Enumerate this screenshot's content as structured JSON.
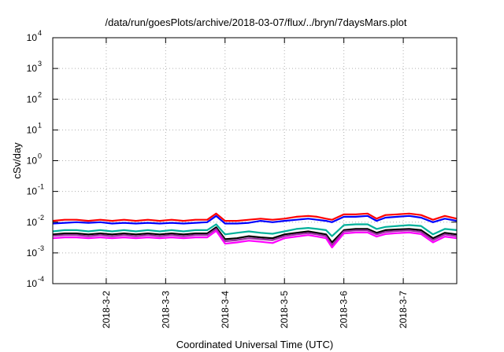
{
  "chart_data": {
    "type": "line",
    "title": "/data/run/goesPlots/archive/2018-03-07/flux/../bryn/7daysMars.plot",
    "xlabel": "Coordinated Universal Time (UTC)",
    "ylabel": "cSv/day",
    "y_scale": "log",
    "ylim": [
      0.0001,
      10000
    ],
    "xlim": [
      1.1,
      7.9
    ],
    "grid": true,
    "legend": "none",
    "y_ticks": [
      {
        "value": 0.0001,
        "base": "10",
        "exp": "-4"
      },
      {
        "value": 0.001,
        "base": "10",
        "exp": "-3"
      },
      {
        "value": 0.01,
        "base": "10",
        "exp": "-2"
      },
      {
        "value": 0.1,
        "base": "10",
        "exp": "-1"
      },
      {
        "value": 1,
        "base": "10",
        "exp": "0"
      },
      {
        "value": 10,
        "base": "10",
        "exp": "1"
      },
      {
        "value": 100,
        "base": "10",
        "exp": "2"
      },
      {
        "value": 1000,
        "base": "10",
        "exp": "3"
      },
      {
        "value": 10000,
        "base": "10",
        "exp": "4"
      }
    ],
    "x_ticks": [
      {
        "value": 2,
        "label": "2018-3-2"
      },
      {
        "value": 3,
        "label": "2018-3-3"
      },
      {
        "value": 4,
        "label": "2018-3-4"
      },
      {
        "value": 5,
        "label": "2018-3-5"
      },
      {
        "value": 6,
        "label": "2018-3-6"
      },
      {
        "value": 7,
        "label": "2018-3-7"
      }
    ],
    "x": [
      1.1,
      1.3,
      1.5,
      1.7,
      1.9,
      2.1,
      2.3,
      2.5,
      2.7,
      2.9,
      3.1,
      3.3,
      3.5,
      3.7,
      3.85,
      4.0,
      4.2,
      4.4,
      4.6,
      4.8,
      5.0,
      5.2,
      5.4,
      5.55,
      5.7,
      5.8,
      6.0,
      6.2,
      6.4,
      6.55,
      6.7,
      6.9,
      7.1,
      7.3,
      7.5,
      7.7,
      7.9
    ],
    "series": [
      {
        "color": "#ff0000",
        "values": [
          0.011,
          0.012,
          0.012,
          0.011,
          0.012,
          0.011,
          0.012,
          0.011,
          0.012,
          0.011,
          0.012,
          0.011,
          0.012,
          0.012,
          0.019,
          0.011,
          0.011,
          0.012,
          0.013,
          0.012,
          0.013,
          0.015,
          0.016,
          0.015,
          0.013,
          0.012,
          0.018,
          0.018,
          0.019,
          0.013,
          0.017,
          0.018,
          0.019,
          0.017,
          0.012,
          0.016,
          0.013
        ]
      },
      {
        "color": "#0000ff",
        "values": [
          0.009,
          0.0095,
          0.01,
          0.0095,
          0.01,
          0.009,
          0.0095,
          0.009,
          0.0095,
          0.009,
          0.0095,
          0.009,
          0.0095,
          0.01,
          0.016,
          0.009,
          0.009,
          0.0095,
          0.011,
          0.01,
          0.011,
          0.012,
          0.013,
          0.012,
          0.011,
          0.01,
          0.015,
          0.015,
          0.016,
          0.011,
          0.014,
          0.015,
          0.016,
          0.014,
          0.01,
          0.013,
          0.011
        ]
      },
      {
        "color": "#00b09a",
        "values": [
          0.005,
          0.0055,
          0.0055,
          0.005,
          0.0055,
          0.005,
          0.0055,
          0.005,
          0.0055,
          0.005,
          0.0055,
          0.005,
          0.0055,
          0.0055,
          0.0085,
          0.004,
          0.0045,
          0.005,
          0.0045,
          0.0042,
          0.005,
          0.006,
          0.0065,
          0.006,
          0.0055,
          0.0035,
          0.008,
          0.0085,
          0.0085,
          0.006,
          0.007,
          0.0075,
          0.008,
          0.0075,
          0.004,
          0.006,
          0.0055
        ]
      },
      {
        "color": "#000000",
        "values": [
          0.004,
          0.0043,
          0.0043,
          0.004,
          0.0043,
          0.004,
          0.0043,
          0.004,
          0.0043,
          0.004,
          0.0043,
          0.004,
          0.0043,
          0.0043,
          0.0068,
          0.0028,
          0.003,
          0.0035,
          0.0032,
          0.003,
          0.004,
          0.0045,
          0.005,
          0.0045,
          0.004,
          0.0022,
          0.0055,
          0.006,
          0.006,
          0.0045,
          0.0055,
          0.0058,
          0.006,
          0.0055,
          0.003,
          0.0045,
          0.004
        ]
      },
      {
        "color": "#9a2fa0",
        "values": [
          0.0036,
          0.0038,
          0.0038,
          0.0035,
          0.0038,
          0.0035,
          0.0038,
          0.0035,
          0.0038,
          0.0035,
          0.0038,
          0.0035,
          0.0038,
          0.0038,
          0.006,
          0.0024,
          0.0026,
          0.003,
          0.0028,
          0.0026,
          0.0035,
          0.004,
          0.0044,
          0.004,
          0.0035,
          0.0018,
          0.005,
          0.0054,
          0.0054,
          0.004,
          0.0048,
          0.0052,
          0.0054,
          0.0048,
          0.0026,
          0.004,
          0.0035
        ]
      },
      {
        "color": "#ff00ff",
        "values": [
          0.003,
          0.0032,
          0.0032,
          0.003,
          0.0032,
          0.003,
          0.0032,
          0.003,
          0.0032,
          0.003,
          0.0032,
          0.003,
          0.0032,
          0.0032,
          0.0052,
          0.002,
          0.0022,
          0.0025,
          0.0023,
          0.0021,
          0.003,
          0.0034,
          0.0038,
          0.0034,
          0.003,
          0.0015,
          0.0043,
          0.0046,
          0.0046,
          0.0034,
          0.0041,
          0.0044,
          0.0046,
          0.0041,
          0.0022,
          0.0034,
          0.003
        ]
      }
    ]
  }
}
